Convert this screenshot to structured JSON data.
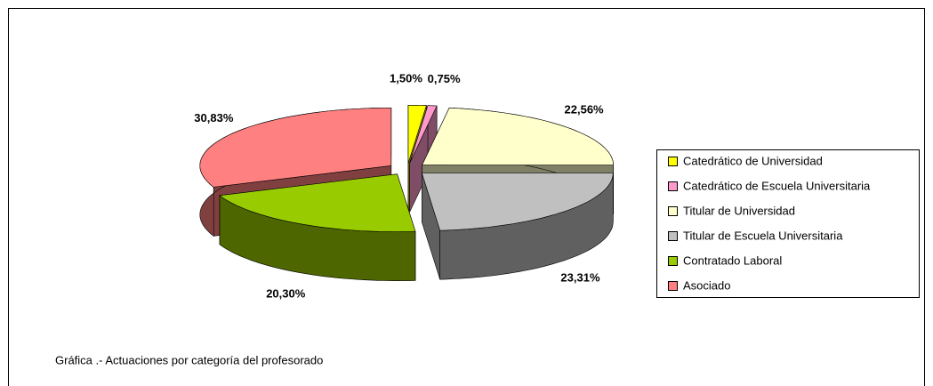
{
  "chart_data": {
    "type": "pie",
    "caption": "Gráfica .- Actuaciones por categoría del profesorado",
    "categories": [
      "Catedrático de Universidad",
      "Catedrático de Escuela Universitaria",
      "Titular de Universidad",
      "Titular de Escuela Universitaria",
      "Contratado Laboral",
      "Asociado"
    ],
    "values": [
      1.5,
      0.75,
      22.56,
      23.31,
      20.3,
      30.83
    ],
    "value_labels": [
      "1,50%",
      "0,75%",
      "22,56%",
      "23,31%",
      "20,30%",
      "30,83%"
    ],
    "colors": [
      "#ffff00",
      "#ff99cc",
      "#ffffcc",
      "#c0c0c0",
      "#99cc00",
      "#ff8080"
    ],
    "legend": "right"
  }
}
